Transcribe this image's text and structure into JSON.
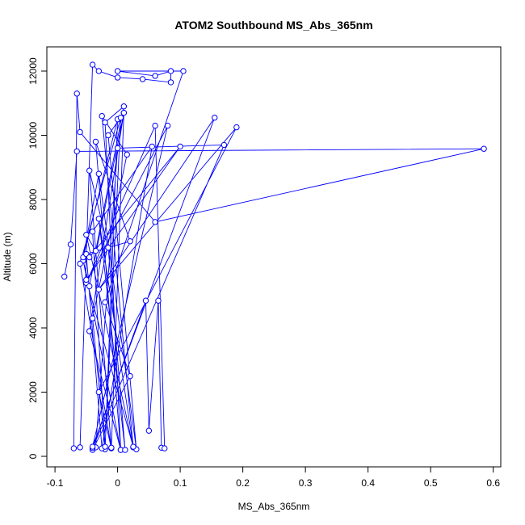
{
  "chart_data": {
    "type": "line",
    "title": "ATOM2 Southbound MS_Abs_365nm",
    "x_label": "MS_Abs_365nm",
    "y_label": "Altitude (m)",
    "x": [
      -0.085,
      -0.075,
      -0.065,
      0.585,
      0.06,
      -0.06,
      -0.065,
      -0.07,
      -0.06,
      -0.04,
      -0.03,
      0.0,
      0.04,
      0.085,
      0.085,
      0.06,
      0.0,
      0.105,
      -0.02,
      0.02,
      -0.04,
      -0.035,
      0.0,
      0.17,
      -0.04,
      0.045,
      0.05,
      0.065,
      0.07,
      0.075,
      0.06,
      -0.05,
      0.08,
      -0.04,
      0.155,
      -0.03,
      0.19,
      -0.03,
      -0.01,
      0.01,
      -0.045,
      -0.055,
      0.005,
      -0.02,
      0.01,
      -0.035,
      -0.05,
      0.025,
      -0.025,
      0.015,
      -0.04,
      -0.02,
      0.0,
      -0.055,
      -0.03,
      0.03,
      -0.015,
      0.01,
      -0.045,
      0.005,
      -0.035,
      0.02,
      -0.05,
      -0.025,
      0.055,
      -0.04,
      -0.02,
      0.005,
      -0.06,
      -0.01,
      -0.045,
      -0.015,
      0.012,
      -0.03,
      0.025,
      -0.05,
      0.1,
      -0.045
    ],
    "values": [
      5600,
      6600,
      9500,
      9580,
      7300,
      10100,
      11300,
      250,
      280,
      12200,
      12000,
      11800,
      11750,
      11650,
      12000,
      11850,
      12000,
      12000,
      4800,
      2500,
      200,
      280,
      9600,
      9700,
      260,
      4850,
      800,
      4850,
      270,
      250,
      10300,
      5400,
      10300,
      300,
      10550,
      5200,
      10250,
      2000,
      250,
      10700,
      5300,
      6100,
      200,
      10400,
      10900,
      6400,
      6900,
      280,
      10600,
      9400,
      4300,
      220,
      10500,
      6200,
      8800,
      220,
      10000,
      10700,
      3900,
      200,
      9800,
      6700,
      6300,
      250,
      9650,
      7000,
      300,
      10550,
      6000,
      270,
      8900,
      6500,
      200,
      7400,
      300,
      5500,
      9650,
      6200
    ],
    "color": "#0000ff",
    "xlim": [
      -0.113,
      0.612
    ],
    "ylim": [
      -327,
      12755
    ],
    "xticks": [
      -0.1,
      0.0,
      0.1,
      0.2,
      0.3,
      0.4,
      0.5,
      0.6
    ],
    "yticks": [
      0,
      2000,
      4000,
      6000,
      8000,
      10000,
      12000
    ]
  }
}
